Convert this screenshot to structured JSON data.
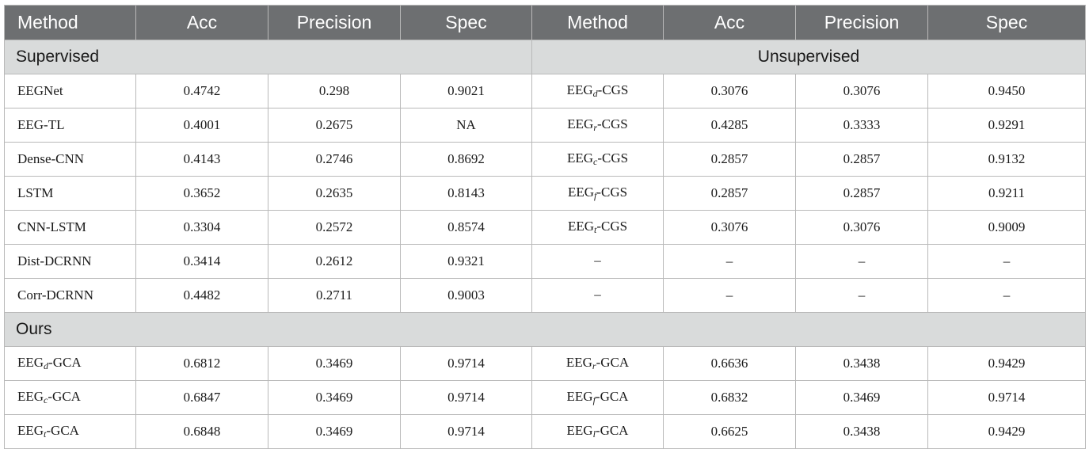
{
  "headers": [
    "Method",
    "Acc",
    "Precision",
    "Spec",
    "Method",
    "Acc",
    "Precision",
    "Spec"
  ],
  "sections": {
    "supervised": "Supervised",
    "unsupervised": "Unsupervised",
    "ours": "Ours"
  },
  "supervised_rows": [
    {
      "left": {
        "method": "EEGNet",
        "acc": "0.4742",
        "precision": "0.298",
        "spec": "0.9021"
      },
      "right": {
        "base": "EEG",
        "sub": "d",
        "suffix": "-CGS",
        "acc": "0.3076",
        "precision": "0.3076",
        "spec": "0.9450"
      }
    },
    {
      "left": {
        "method": "EEG-TL",
        "acc": "0.4001",
        "precision": "0.2675",
        "spec": "NA"
      },
      "right": {
        "base": "EEG",
        "sub": "r",
        "suffix": "-CGS",
        "acc": "0.4285",
        "precision": "0.3333",
        "spec": "0.9291"
      }
    },
    {
      "left": {
        "method": "Dense-CNN",
        "acc": "0.4143",
        "precision": "0.2746",
        "spec": "0.8692"
      },
      "right": {
        "base": "EEG",
        "sub": "c",
        "suffix": "-CGS",
        "acc": "0.2857",
        "precision": "0.2857",
        "spec": "0.9132"
      }
    },
    {
      "left": {
        "method": "LSTM",
        "acc": "0.3652",
        "precision": "0.2635",
        "spec": "0.8143"
      },
      "right": {
        "base": "EEG",
        "sub": "f",
        "suffix": "-CGS",
        "acc": "0.2857",
        "precision": "0.2857",
        "spec": "0.9211"
      }
    },
    {
      "left": {
        "method": "CNN-LSTM",
        "acc": "0.3304",
        "precision": "0.2572",
        "spec": "0.8574"
      },
      "right": {
        "base": "EEG",
        "sub": "t",
        "suffix": "-CGS",
        "acc": "0.3076",
        "precision": "0.3076",
        "spec": "0.9009"
      }
    },
    {
      "left": {
        "method": "Dist-DCRNN",
        "acc": "0.3414",
        "precision": "0.2612",
        "spec": "0.9321"
      },
      "right": {
        "base": "–",
        "sub": "",
        "suffix": "",
        "acc": "–",
        "precision": "–",
        "spec": "–"
      }
    },
    {
      "left": {
        "method": "Corr-DCRNN",
        "acc": "0.4482",
        "precision": "0.2711",
        "spec": "0.9003"
      },
      "right": {
        "base": "–",
        "sub": "",
        "suffix": "",
        "acc": "–",
        "precision": "–",
        "spec": "–"
      }
    }
  ],
  "ours_rows": [
    {
      "left": {
        "base": "EEG",
        "sub": "d",
        "suffix": "-GCA",
        "acc": "0.6812",
        "precision": "0.3469",
        "spec": "0.9714"
      },
      "right": {
        "base": "EEG",
        "sub": "r",
        "suffix": "-GCA",
        "acc": "0.6636",
        "precision": "0.3438",
        "spec": "0.9429"
      }
    },
    {
      "left": {
        "base": "EEG",
        "sub": "c",
        "suffix": "-GCA",
        "acc": "0.6847",
        "precision": "0.3469",
        "spec": "0.9714"
      },
      "right": {
        "base": "EEG",
        "sub": "f",
        "suffix": "-GCA",
        "acc": "0.6832",
        "precision": "0.3469",
        "spec": "0.9714"
      }
    },
    {
      "left": {
        "base": "EEG",
        "sub": "t",
        "suffix": "-GCA",
        "acc": "0.6848",
        "precision": "0.3469",
        "spec": "0.9714"
      },
      "right": {
        "base": "EEG",
        "sub": "l",
        "suffix": "-GCA",
        "acc": "0.6625",
        "precision": "0.3438",
        "spec": "0.9429"
      }
    }
  ]
}
